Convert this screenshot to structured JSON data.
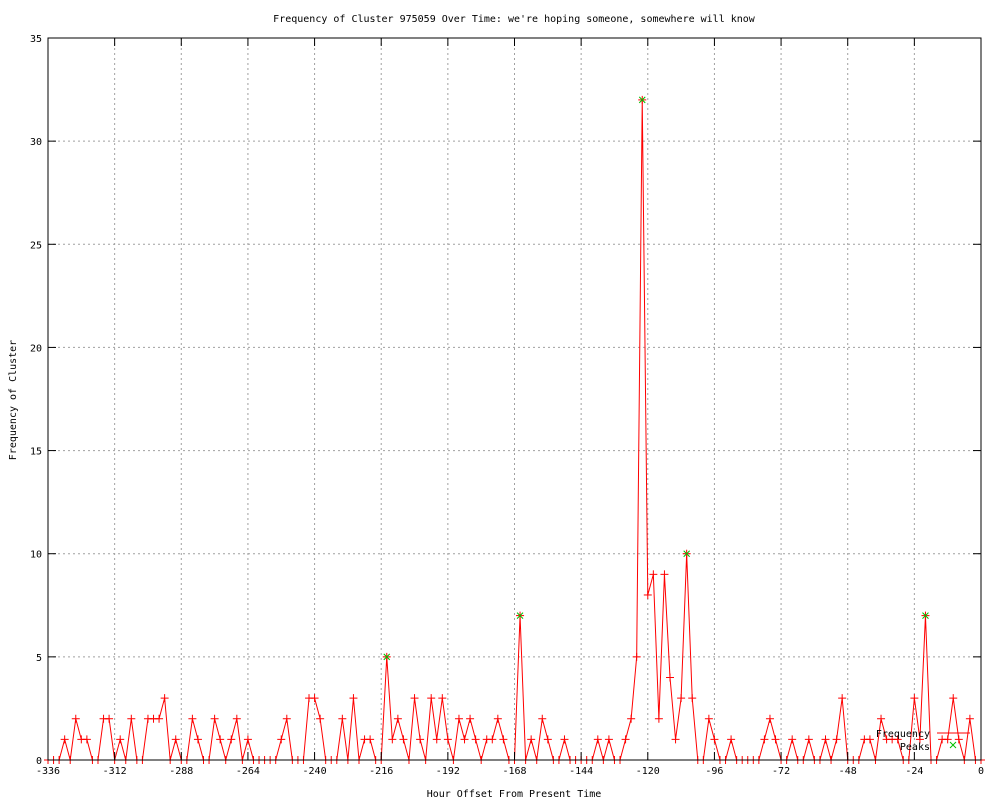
{
  "chart_data": {
    "type": "line",
    "title": "Frequency of Cluster 975059 Over Time: we're hoping someone, somewhere will know",
    "xlabel": "Hour Offset From Present Time",
    "ylabel": "Frequency of Cluster",
    "xlim": [
      -336,
      0
    ],
    "ylim": [
      0,
      35
    ],
    "xticks": [
      -336,
      -312,
      -288,
      -264,
      -240,
      -216,
      -192,
      -168,
      -144,
      -120,
      -96,
      -72,
      -48,
      -24,
      0
    ],
    "yticks": [
      0,
      5,
      10,
      15,
      20,
      25,
      30,
      35
    ],
    "grid": true,
    "legend_placement": "bottom-right",
    "x_start": -336,
    "x_step": 2,
    "series": [
      {
        "name": "Frequency",
        "color": "#ff0000",
        "style": "linespoints",
        "values": [
          0,
          0,
          0,
          1,
          0,
          2,
          1,
          1,
          0,
          0,
          2,
          2,
          0,
          1,
          0,
          2,
          0,
          0,
          2,
          2,
          2,
          3,
          0,
          1,
          0,
          0,
          2,
          1,
          0,
          0,
          2,
          1,
          0,
          1,
          2,
          0,
          1,
          0,
          0,
          0,
          0,
          0,
          1,
          2,
          0,
          0,
          0,
          3,
          3,
          2,
          0,
          0,
          0,
          2,
          0,
          3,
          0,
          1,
          1,
          0,
          0,
          5,
          1,
          2,
          1,
          0,
          3,
          1,
          0,
          3,
          1,
          3,
          1,
          0,
          2,
          1,
          2,
          1,
          0,
          1,
          1,
          2,
          1,
          0,
          0,
          7,
          0,
          1,
          0,
          2,
          1,
          0,
          0,
          1,
          0,
          0,
          0,
          0,
          0,
          1,
          0,
          1,
          0,
          0,
          1,
          2,
          5,
          32,
          8,
          9,
          2,
          9,
          4,
          1,
          3,
          10,
          3,
          0,
          0,
          2,
          1,
          0,
          0,
          1,
          0,
          0,
          0,
          0,
          0,
          1,
          2,
          1,
          0,
          0,
          1,
          0,
          0,
          1,
          0,
          0,
          1,
          0,
          1,
          3,
          0,
          0,
          0,
          1,
          1,
          0,
          2,
          1,
          1,
          1,
          0,
          0,
          3,
          1,
          7,
          0,
          0,
          1,
          1,
          3,
          1,
          0,
          2,
          0,
          0
        ]
      },
      {
        "name": "Peaks",
        "color": "#00c000",
        "style": "points",
        "points": [
          [
            -214,
            5
          ],
          [
            -166,
            7
          ],
          [
            -122,
            32
          ],
          [
            -106,
            10
          ],
          [
            -20,
            7
          ]
        ]
      }
    ]
  }
}
